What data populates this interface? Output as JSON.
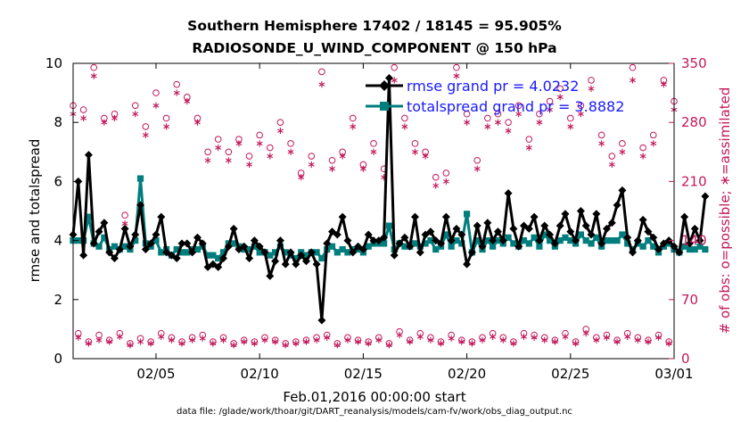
{
  "colors": {
    "rmse": "#000000",
    "spread": "#007d7d",
    "obs": "#c2185b",
    "legend_text": "#1a1aff"
  },
  "chart_data": {
    "type": "line",
    "title_line1": "Southern Hemisphere 17402 / 18145 = 95.905%",
    "title_line2": "RADIOSONDE_U_WIND_COMPONENT @ 150 hPa",
    "xlabel": "Feb.01,2016 00:00:00 start",
    "ylabel_left": "rmse and totalspread",
    "ylabel_right": "# of obs: o=possible; ∗=assimilated",
    "footer": "data file: /glade/work/thoar/git/DART_reanalysis/models/cam-fv/work/obs_diag_output.nc",
    "xlim": [
      1,
      30
    ],
    "ylim_left": [
      0,
      10
    ],
    "ylim_right": [
      0,
      350
    ],
    "x_ticks": [
      {
        "x": 5,
        "label": "02/05"
      },
      {
        "x": 10,
        "label": "02/10"
      },
      {
        "x": 15,
        "label": "02/15"
      },
      {
        "x": 20,
        "label": "02/20"
      },
      {
        "x": 25,
        "label": "02/25"
      },
      {
        "x": 30,
        "label": "03/01"
      }
    ],
    "y_ticks_left": [
      "0",
      "2",
      "4",
      "6",
      "8",
      "10"
    ],
    "y_ticks_right": [
      "0",
      "70",
      "140",
      "210",
      "280",
      "350"
    ],
    "x_step": 0.25,
    "x_start": 1.0,
    "legend": {
      "position": "top-right",
      "entries": [
        "rmse grand pr = 4.0232",
        "totalspread grand pr = 3.8882"
      ]
    },
    "series": [
      {
        "name": "rmse grand pr = 4.0232",
        "axis": "left",
        "marker": "diamond",
        "values": [
          4.2,
          6.0,
          3.5,
          6.9,
          3.9,
          4.3,
          4.6,
          3.6,
          3.4,
          3.7,
          4.4,
          3.8,
          4.2,
          5.2,
          3.7,
          3.9,
          4.2,
          4.8,
          3.6,
          3.5,
          3.4,
          3.9,
          3.9,
          3.6,
          4.1,
          3.9,
          3.1,
          3.2,
          3.1,
          3.4,
          3.8,
          4.4,
          3.7,
          3.8,
          3.4,
          4.0,
          3.8,
          3.6,
          2.8,
          3.3,
          4.0,
          3.2,
          3.6,
          3.2,
          3.5,
          3.3,
          3.6,
          3.2,
          1.3,
          3.9,
          4.3,
          4.2,
          4.8,
          4.0,
          3.6,
          3.8,
          3.7,
          4.2,
          4.0,
          4.0,
          4.1,
          9.5,
          3.5,
          3.9,
          4.1,
          3.8,
          4.8,
          3.6,
          4.2,
          4.3,
          4.0,
          3.9,
          4.8,
          4.0,
          4.4,
          4.2,
          3.2,
          3.6,
          4.5,
          3.8,
          4.6,
          4.0,
          4.3,
          4.0,
          5.6,
          4.4,
          3.8,
          4.5,
          4.4,
          4.8,
          4.0,
          4.5,
          4.2,
          3.9,
          4.5,
          4.9,
          4.3,
          4.0,
          5.0,
          4.5,
          4.2,
          4.9,
          3.9,
          4.4,
          4.6,
          5.2,
          5.7,
          4.1,
          3.6,
          4.0,
          4.7,
          4.3,
          4.1,
          3.7,
          3.9,
          4.0,
          3.8,
          3.6,
          4.8,
          3.9,
          4.4,
          4.0,
          5.5
        ]
      },
      {
        "name": "totalspread grand pr = 3.8882",
        "axis": "left",
        "marker": "square",
        "values": [
          4.0,
          4.0,
          4.0,
          4.8,
          3.9,
          3.8,
          4.1,
          3.7,
          3.8,
          3.7,
          3.8,
          3.7,
          4.0,
          6.1,
          3.9,
          3.8,
          4.0,
          3.6,
          3.7,
          3.5,
          3.7,
          3.6,
          3.6,
          3.7,
          3.7,
          3.8,
          3.5,
          3.5,
          3.4,
          3.6,
          3.9,
          3.9,
          3.8,
          3.7,
          3.7,
          3.8,
          3.6,
          3.6,
          3.5,
          3.6,
          3.8,
          3.6,
          3.5,
          3.4,
          3.6,
          3.5,
          3.6,
          3.6,
          3.4,
          3.7,
          3.8,
          3.6,
          3.7,
          3.6,
          3.7,
          3.7,
          3.6,
          3.8,
          3.9,
          3.9,
          3.9,
          4.5,
          3.7,
          3.9,
          3.8,
          3.8,
          3.9,
          3.8,
          3.9,
          4.0,
          3.7,
          3.8,
          4.2,
          3.8,
          4.0,
          3.9,
          4.9,
          3.6,
          4.0,
          3.7,
          4.0,
          3.8,
          4.0,
          3.9,
          4.1,
          3.9,
          3.8,
          4.0,
          3.9,
          4.1,
          3.8,
          4.2,
          4.0,
          3.8,
          4.0,
          4.1,
          4.0,
          3.9,
          4.2,
          4.0,
          3.9,
          4.1,
          3.8,
          4.0,
          4.0,
          4.0,
          4.2,
          3.9,
          3.7,
          3.9,
          3.8,
          4.0,
          3.8,
          3.6,
          3.8,
          3.9,
          3.7,
          3.6,
          3.8,
          3.7,
          3.7,
          3.8,
          3.7
        ]
      },
      {
        "name": "possible",
        "axis": "right",
        "marker": "circle",
        "values": [
          300,
          30,
          295,
          20,
          345,
          28,
          285,
          22,
          290,
          30,
          170,
          18,
          300,
          24,
          275,
          20,
          315,
          30,
          285,
          25,
          325,
          20,
          310,
          25,
          285,
          28,
          245,
          20,
          260,
          25,
          245,
          18,
          260,
          22,
          240,
          20,
          265,
          25,
          250,
          22,
          280,
          18,
          255,
          20,
          220,
          22,
          240,
          25,
          340,
          28,
          235,
          18,
          245,
          25,
          285,
          22,
          230,
          20,
          255,
          25,
          225,
          18,
          345,
          32,
          285,
          22,
          255,
          30,
          245,
          25,
          215,
          20,
          220,
          28,
          345,
          22,
          290,
          20,
          235,
          25,
          285,
          30,
          290,
          25,
          280,
          20,
          300,
          30,
          260,
          28,
          290,
          25,
          305,
          22,
          320,
          30,
          285,
          20,
          300,
          35,
          330,
          25,
          265,
          28,
          240,
          22,
          255,
          30,
          345,
          25,
          250,
          22,
          265,
          28,
          330,
          20,
          305,
          25,
          350,
          25,
          245,
          22,
          250
        ]
      },
      {
        "name": "assimilated",
        "axis": "right",
        "marker": "star",
        "values": [
          290,
          25,
          285,
          18,
          335,
          22,
          280,
          20,
          285,
          26,
          160,
          16,
          290,
          20,
          265,
          18,
          300,
          26,
          275,
          22,
          315,
          18,
          305,
          22,
          280,
          24,
          235,
          18,
          250,
          22,
          235,
          16,
          255,
          20,
          230,
          18,
          255,
          22,
          240,
          20,
          270,
          16,
          245,
          18,
          215,
          20,
          230,
          22,
          325,
          25,
          225,
          16,
          240,
          22,
          275,
          20,
          225,
          18,
          245,
          22,
          215,
          16,
          330,
          28,
          275,
          20,
          245,
          26,
          240,
          22,
          205,
          18,
          210,
          24,
          335,
          20,
          280,
          18,
          225,
          22,
          275,
          26,
          280,
          22,
          270,
          18,
          290,
          26,
          250,
          25,
          280,
          22,
          295,
          20,
          310,
          26,
          275,
          18,
          290,
          30,
          320,
          22,
          255,
          25,
          230,
          20,
          245,
          26,
          330,
          22,
          240,
          20,
          255,
          25,
          325,
          18,
          295,
          22,
          335,
          22,
          235,
          20,
          240
        ]
      }
    ]
  }
}
